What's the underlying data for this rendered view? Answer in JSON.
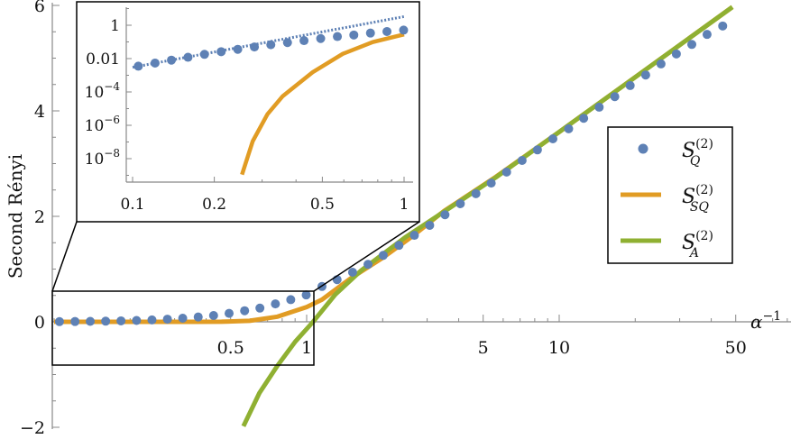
{
  "chart_data": {
    "type": "line",
    "ylabel": "Second Rényi",
    "xlabel": {
      "base": "α",
      "exp": "−1"
    },
    "x_scale": "log",
    "xlim": [
      0.1,
      90
    ],
    "ylim": [
      -2,
      6
    ],
    "y_ticks": [
      {
        "value": -2,
        "label": "−2"
      },
      {
        "value": 0,
        "label": "0"
      },
      {
        "value": 2,
        "label": "2"
      },
      {
        "value": 4,
        "label": "4"
      },
      {
        "value": 6,
        "label": "6"
      }
    ],
    "x_ticks": [
      {
        "value": 0.5,
        "label": "0.5"
      },
      {
        "value": 1,
        "label": "1"
      },
      {
        "value": 5,
        "label": "5"
      },
      {
        "value": 10,
        "label": "10"
      },
      {
        "value": 50,
        "label": "50"
      }
    ],
    "legend_position": "right",
    "colors": {
      "Q": "#5e81b5",
      "SQ": "#e19c24",
      "A": "#8fb032",
      "axis": "#888888"
    },
    "series": [
      {
        "key": "Q",
        "name": {
          "symbol": "S",
          "sup": "(2)",
          "sub": "Q"
        },
        "style": "points",
        "x": [
          0.105,
          0.121,
          0.139,
          0.16,
          0.184,
          0.212,
          0.244,
          0.281,
          0.323,
          0.372,
          0.428,
          0.493,
          0.568,
          0.653,
          0.752,
          0.865,
          0.996,
          1.15,
          1.32,
          1.52,
          1.75,
          2.01,
          2.32,
          2.67,
          3.07,
          3.53,
          4.06,
          4.68,
          5.38,
          6.19,
          7.13,
          8.2,
          9.44,
          10.9,
          12.5,
          14.4,
          16.6,
          19.1,
          22.0,
          25.3,
          29.1,
          33.5,
          38.5,
          44.4
        ],
        "y": [
          0.0035,
          0.0054,
          0.0081,
          0.012,
          0.018,
          0.026,
          0.036,
          0.05,
          0.068,
          0.091,
          0.12,
          0.16,
          0.21,
          0.26,
          0.34,
          0.42,
          0.51,
          0.67,
          0.8,
          0.94,
          1.09,
          1.26,
          1.45,
          1.64,
          1.83,
          2.03,
          2.24,
          2.43,
          2.63,
          2.84,
          3.06,
          3.26,
          3.47,
          3.66,
          3.86,
          4.07,
          4.27,
          4.48,
          4.68,
          4.89,
          5.08,
          5.26,
          5.45,
          5.61
        ]
      },
      {
        "key": "SQ",
        "name": {
          "symbol": "S",
          "sup": "(2)",
          "sub": "SQ"
        },
        "style": "line",
        "x": [
          0.1,
          0.253,
          0.277,
          0.314,
          0.357,
          0.46,
          0.594,
          0.767,
          1.0,
          1.15,
          1.51,
          1.98,
          2.62,
          3.5,
          5.62,
          10,
          48.5
        ],
        "y": [
          0,
          1.1e-09,
          1.1e-07,
          4.7e-06,
          5.6e-05,
          0.0015,
          0.019,
          0.098,
          0.28,
          0.42,
          0.84,
          1.2,
          1.62,
          2.1,
          2.75,
          3.6,
          5.97
        ]
      },
      {
        "key": "A",
        "name": {
          "symbol": "S",
          "sup": "(2)",
          "sub": "A"
        },
        "style": "line",
        "x": [
          0.562,
          0.65,
          0.762,
          0.9,
          1.06,
          1.3,
          1.64,
          2.47,
          5.62,
          10,
          20,
          48.5
        ],
        "y": [
          -1.98,
          -1.35,
          -0.85,
          -0.38,
          0,
          0.52,
          0.97,
          1.61,
          2.74,
          3.6,
          4.64,
          5.97
        ]
      }
    ],
    "inset": {
      "x_scale": "log",
      "y_scale": "log",
      "xlim": [
        0.1,
        1
      ],
      "ylim": [
        1e-09,
        10
      ],
      "x_ticks": [
        {
          "value": 0.1,
          "label": "0.1"
        },
        {
          "value": 0.2,
          "label": "0.2"
        },
        {
          "value": 0.5,
          "label": "0.5"
        },
        {
          "value": 1,
          "label": "1"
        }
      ],
      "y_ticks": [
        {
          "value": 1,
          "base": "1",
          "exp": ""
        },
        {
          "value": 0.01,
          "base": "0.01",
          "exp": ""
        },
        {
          "value": 0.0001,
          "base": "10",
          "exp": "−4"
        },
        {
          "value": 1e-06,
          "base": "10",
          "exp": "−6"
        },
        {
          "value": 1e-08,
          "base": "10",
          "exp": "−8"
        }
      ],
      "fit_line": {
        "style": "dotted",
        "x": [
          0.1,
          1
        ],
        "y": [
          0.003,
          3.3
        ]
      },
      "zoom_region": {
        "x": [
          0.1,
          1.1
        ],
        "y": [
          -0.8,
          0.6
        ]
      }
    }
  }
}
